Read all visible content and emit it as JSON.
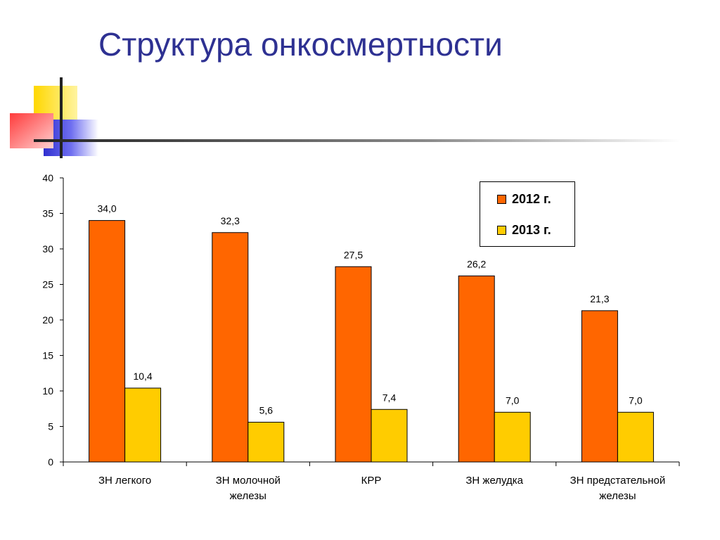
{
  "slide": {
    "title": "Структура онкосмертности"
  },
  "colors": {
    "title": "#2e3192",
    "series_2012": "#ff6600",
    "series_2013": "#ffcc00",
    "deco_yellow": "#ffd700",
    "deco_red": "#ff4d4d",
    "deco_blue": "#2f2fd0"
  },
  "chart_data": {
    "type": "bar",
    "categories": [
      [
        "ЗН легкого"
      ],
      [
        "ЗН молочной",
        "железы"
      ],
      [
        "КРР"
      ],
      [
        "ЗН желудка"
      ],
      [
        "ЗН предстательной",
        "железы"
      ]
    ],
    "series": [
      {
        "name": "2012 г.",
        "values": [
          34.0,
          32.3,
          27.5,
          26.2,
          21.3
        ],
        "labels": [
          "34,0",
          "32,3",
          "27,5",
          "26,2",
          "21,3"
        ]
      },
      {
        "name": "2013 г.",
        "values": [
          10.4,
          5.6,
          7.4,
          7.0,
          7.0
        ],
        "labels": [
          "10,4",
          "5,6",
          "7,4",
          "7,0",
          "7,0"
        ]
      }
    ],
    "ylim": [
      0,
      40
    ],
    "yticks": [
      "0",
      "5",
      "10",
      "15",
      "20",
      "25",
      "30",
      "35",
      "40"
    ],
    "grid": false,
    "legend_position": "top-right",
    "title": "",
    "xlabel": "",
    "ylabel": ""
  }
}
